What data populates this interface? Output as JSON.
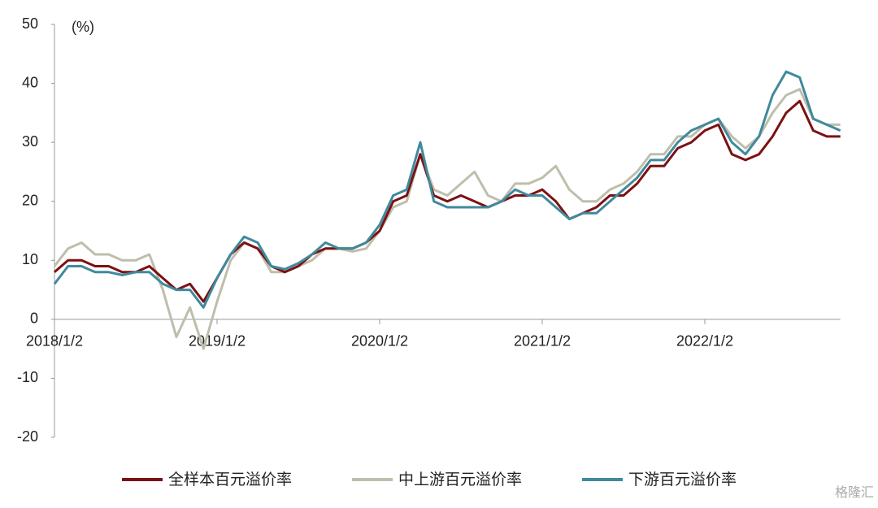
{
  "chart_data": {
    "type": "line",
    "y_unit_label": "(%)",
    "categories": [
      "2018/1/2",
      null,
      null,
      null,
      null,
      null,
      null,
      null,
      null,
      null,
      null,
      null,
      "2019/1/2",
      null,
      null,
      null,
      null,
      null,
      null,
      null,
      null,
      null,
      null,
      null,
      "2020/1/2",
      null,
      null,
      null,
      null,
      null,
      null,
      null,
      null,
      null,
      null,
      null,
      "2021/1/2",
      null,
      null,
      null,
      null,
      null,
      null,
      null,
      null,
      null,
      null,
      null,
      "2022/1/2",
      null,
      null,
      null,
      null,
      null,
      null,
      null,
      null,
      null,
      null
    ],
    "series": [
      {
        "name": "中上游百元溢价率",
        "color": "#bfbeac",
        "values": [
          9,
          12,
          13,
          11,
          11,
          10,
          10,
          11,
          5,
          -3,
          2,
          -5,
          3,
          10,
          13,
          12,
          8,
          8,
          9,
          10,
          12,
          12,
          11.5,
          12,
          15,
          19,
          20,
          28,
          22,
          21,
          23,
          25,
          21,
          20,
          23,
          23,
          24,
          26,
          22,
          20,
          20,
          22,
          23,
          25,
          28,
          28,
          31,
          31,
          33,
          34,
          31,
          29,
          31,
          35,
          38,
          39,
          34,
          33,
          33
        ]
      },
      {
        "name": "全样本百元溢价率",
        "color": "#7b1113",
        "values": [
          8,
          10,
          10,
          9,
          9,
          8,
          8,
          9,
          7,
          5,
          6,
          3,
          7,
          11,
          13,
          12,
          9,
          8,
          9,
          11,
          12,
          12,
          12,
          13,
          15,
          20,
          21,
          28,
          21,
          20,
          21,
          20,
          19,
          20,
          21,
          21,
          22,
          20,
          17,
          18,
          19,
          21,
          21,
          23,
          26,
          26,
          29,
          30,
          32,
          33,
          28,
          27,
          28,
          31,
          35,
          37,
          32,
          31,
          31
        ]
      },
      {
        "name": "下游百元溢价率",
        "color": "#3f8a9c",
        "values": [
          6,
          9,
          9,
          8,
          8,
          7.5,
          8,
          8,
          6,
          5,
          5,
          2,
          7,
          11,
          14,
          13,
          9,
          8.5,
          9.5,
          11,
          13,
          12,
          12,
          13,
          16,
          21,
          22,
          30,
          20,
          19,
          19,
          19,
          19,
          20,
          22,
          21,
          21,
          19,
          17,
          18,
          18,
          20,
          22,
          24,
          27,
          27,
          30,
          32,
          33,
          34,
          30,
          28,
          31,
          38,
          42,
          41,
          34,
          33,
          32
        ]
      }
    ],
    "legend_order": [
      1,
      0,
      2
    ],
    "ylim": [
      -20,
      50
    ],
    "yticks": [
      -20,
      -10,
      0,
      10,
      20,
      30,
      40,
      50
    ],
    "grid": false,
    "watermark": "格隆汇"
  }
}
